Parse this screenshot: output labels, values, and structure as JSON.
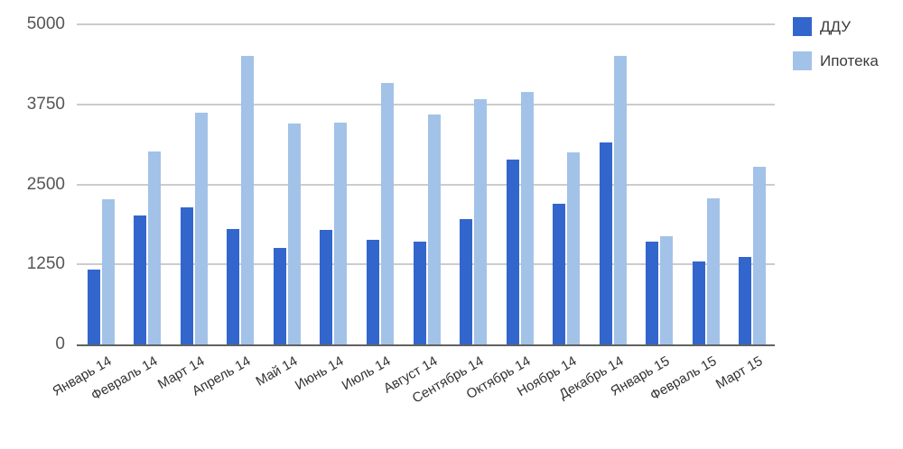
{
  "chart_data": {
    "type": "bar",
    "title": "",
    "xlabel": "",
    "ylabel": "",
    "categories": [
      "Январь 14",
      "Февраль 14",
      "Март 14",
      "Апрель 14",
      "Май 14",
      "Июнь 14",
      "Июль 14",
      "Август 14",
      "Сентябрь 14",
      "Октябрь 14",
      "Ноябрь 14",
      "Декабрь 14",
      "Январь 15",
      "Февраль 15",
      "Март 15"
    ],
    "series": [
      {
        "name": "ДДУ",
        "color": "#3366CC",
        "values": [
          1170,
          2010,
          2140,
          1800,
          1500,
          1790,
          1630,
          1600,
          1960,
          2890,
          2200,
          3150,
          1610,
          1300,
          1370
        ]
      },
      {
        "name": "Ипотека",
        "color": "#A3C2E8",
        "values": [
          2270,
          3020,
          3620,
          4500,
          3450,
          3470,
          4080,
          3590,
          3830,
          3940,
          3000,
          4500,
          1690,
          2280,
          2770
        ]
      }
    ],
    "y_axis": {
      "min": 0,
      "max": 5000,
      "ticks": [
        0,
        1250,
        2500,
        3750,
        5000
      ]
    },
    "grid": true,
    "legend_position": "top-right",
    "x_label_rotation_deg": -30
  },
  "colors": {
    "background": "#ffffff",
    "gridline": "#cccccc",
    "baseline": "#616161",
    "y_tick_text": "#555555",
    "x_tick_text": "#333333",
    "legend_text": "#3a3a3a"
  }
}
